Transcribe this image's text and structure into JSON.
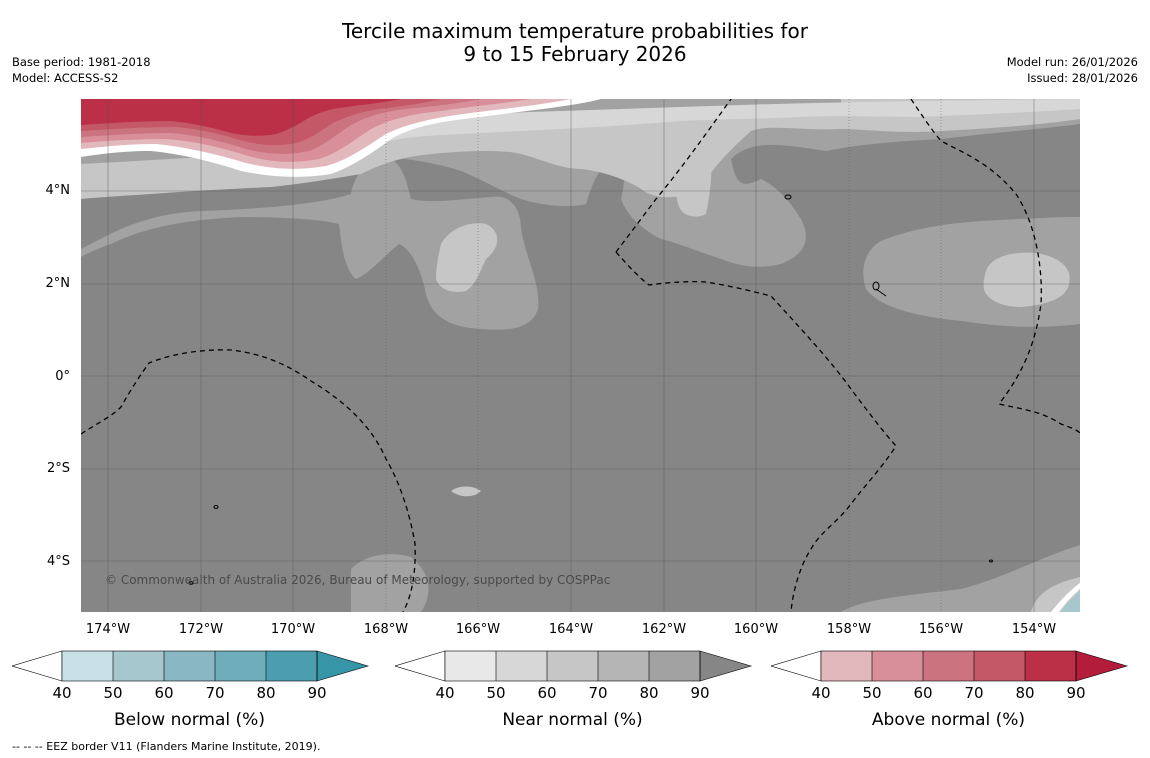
{
  "title": {
    "line1": "Tercile maximum temperature probabilities for",
    "line2": "9 to 15 February 2026"
  },
  "meta_left": {
    "base_period": "Base period: 1981-2018",
    "model": "Model: ACCESS-S2"
  },
  "meta_right": {
    "model_run": "Model run: 26/01/2026",
    "issued": "Issued: 28/01/2026"
  },
  "map": {
    "lat_ticks": [
      "4°N",
      "2°N",
      "0°",
      "2°S",
      "4°S"
    ],
    "lon_ticks": [
      "174°W",
      "172°W",
      "170°W",
      "168°W",
      "166°W",
      "164°W",
      "162°W",
      "160°W",
      "158°W",
      "156°W",
      "154°W"
    ],
    "copyright": "© Commonwealth of Australia 2026, Bureau of Meteorology, supported by COSPPac"
  },
  "colorbars": [
    {
      "label": "Below normal (%)",
      "ticks": [
        "40",
        "50",
        "60",
        "70",
        "80",
        "90"
      ],
      "colors": [
        "#ffffff",
        "#c7e1e7",
        "#a6c7cd",
        "#89b7c3",
        "#6eaebb",
        "#4a9eae",
        "#3795a8"
      ]
    },
    {
      "label": "Near normal (%)",
      "ticks": [
        "40",
        "50",
        "60",
        "70",
        "80",
        "90"
      ],
      "colors": [
        "#ffffff",
        "#e8e8e8",
        "#d7d7d7",
        "#c6c6c6",
        "#b5b5b5",
        "#a2a2a2",
        "#868686"
      ]
    },
    {
      "label": "Above normal (%)",
      "ticks": [
        "40",
        "50",
        "60",
        "70",
        "80",
        "90"
      ],
      "colors": [
        "#ffffff",
        "#e3b8bd",
        "#d88f99",
        "#cc7380",
        "#c45866",
        "#bb2f47",
        "#b41c3c"
      ]
    }
  ],
  "footer": "-- -- -- EEZ border V11 (Flanders Marine Institute, 2019)."
}
